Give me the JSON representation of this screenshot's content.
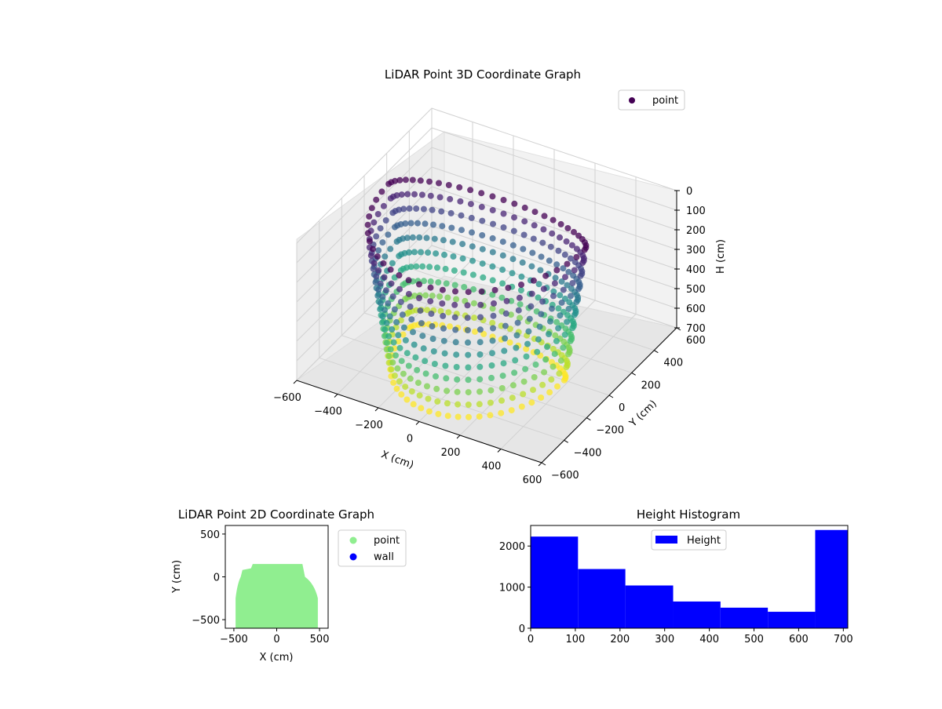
{
  "chart_data": [
    {
      "type": "scatter",
      "title": "LiDAR Point 3D Coordinate Graph",
      "xlabel": "X (cm)",
      "ylabel": "Y (cm)",
      "zlabel": "H (cm)",
      "xlim": [
        -600,
        600
      ],
      "ylim": [
        -600,
        600
      ],
      "zlim": [
        0,
        700
      ],
      "z_inverted": true,
      "xticks": [
        "−600",
        "−400",
        "−200",
        "0",
        "200",
        "400",
        "600"
      ],
      "yticks": [
        "−600",
        "−400",
        "−200",
        "0",
        "200",
        "400",
        "600"
      ],
      "zticks": [
        "0",
        "100",
        "200",
        "300",
        "400",
        "500",
        "600",
        "700"
      ],
      "colormap": "viridis",
      "legend": {
        "position": "top-right",
        "entries": [
          {
            "label": "point",
            "color": "#440154"
          }
        ]
      },
      "point_cloud": {
        "rings": [
          {
            "h": 0,
            "rx": 480,
            "ry_pos": 150,
            "ry_neg": 600
          },
          {
            "h": 70,
            "rx": 470,
            "ry_pos": 150,
            "ry_neg": 600
          },
          {
            "h": 140,
            "rx": 460,
            "ry_pos": 150,
            "ry_neg": 590
          },
          {
            "h": 210,
            "rx": 450,
            "ry_pos": 145,
            "ry_neg": 580
          },
          {
            "h": 280,
            "rx": 440,
            "ry_pos": 145,
            "ry_neg": 570
          },
          {
            "h": 350,
            "rx": 430,
            "ry_pos": 140,
            "ry_neg": 560
          },
          {
            "h": 420,
            "rx": 420,
            "ry_pos": 140,
            "ry_neg": 550
          },
          {
            "h": 490,
            "rx": 410,
            "ry_pos": 135,
            "ry_neg": 540
          },
          {
            "h": 560,
            "rx": 400,
            "ry_pos": 135,
            "ry_neg": 530
          },
          {
            "h": 630,
            "rx": 390,
            "ry_pos": 130,
            "ry_neg": 520
          },
          {
            "h": 700,
            "rx": 380,
            "ry_pos": 130,
            "ry_neg": 510
          }
        ],
        "points_per_ring": 56
      }
    },
    {
      "type": "scatter",
      "title": "LiDAR Point 2D Coordinate Graph",
      "xlabel": "X (cm)",
      "ylabel": "Y (cm)",
      "xlim": [
        -600,
        600
      ],
      "ylim": [
        -600,
        600
      ],
      "xticks": [
        "−500",
        "0",
        "500"
      ],
      "yticks": [
        "−500",
        "0",
        "500"
      ],
      "legend": {
        "position": "outside-right",
        "entries": [
          {
            "label": "point",
            "color": "#90ee90"
          },
          {
            "label": "wall",
            "color": "#0000ff"
          }
        ]
      },
      "footprint": {
        "x_min": -480,
        "x_max": 480,
        "y_top": 150,
        "y_bottom": -600
      }
    },
    {
      "type": "bar",
      "title": "Height Histogram",
      "xlim": [
        0,
        710
      ],
      "ylim": [
        0,
        2500
      ],
      "xticks": [
        "0",
        "100",
        "200",
        "300",
        "400",
        "500",
        "600",
        "700"
      ],
      "yticks": [
        "0",
        "1000",
        "2000"
      ],
      "bin_edges": [
        0,
        106,
        212,
        319,
        425,
        531,
        637,
        710
      ],
      "values": [
        2230,
        1440,
        1040,
        650,
        500,
        400,
        2390
      ],
      "color": "#0000ff",
      "legend": {
        "position": "top-center",
        "entries": [
          {
            "label": "Height",
            "color": "#0000ff"
          }
        ]
      }
    }
  ]
}
